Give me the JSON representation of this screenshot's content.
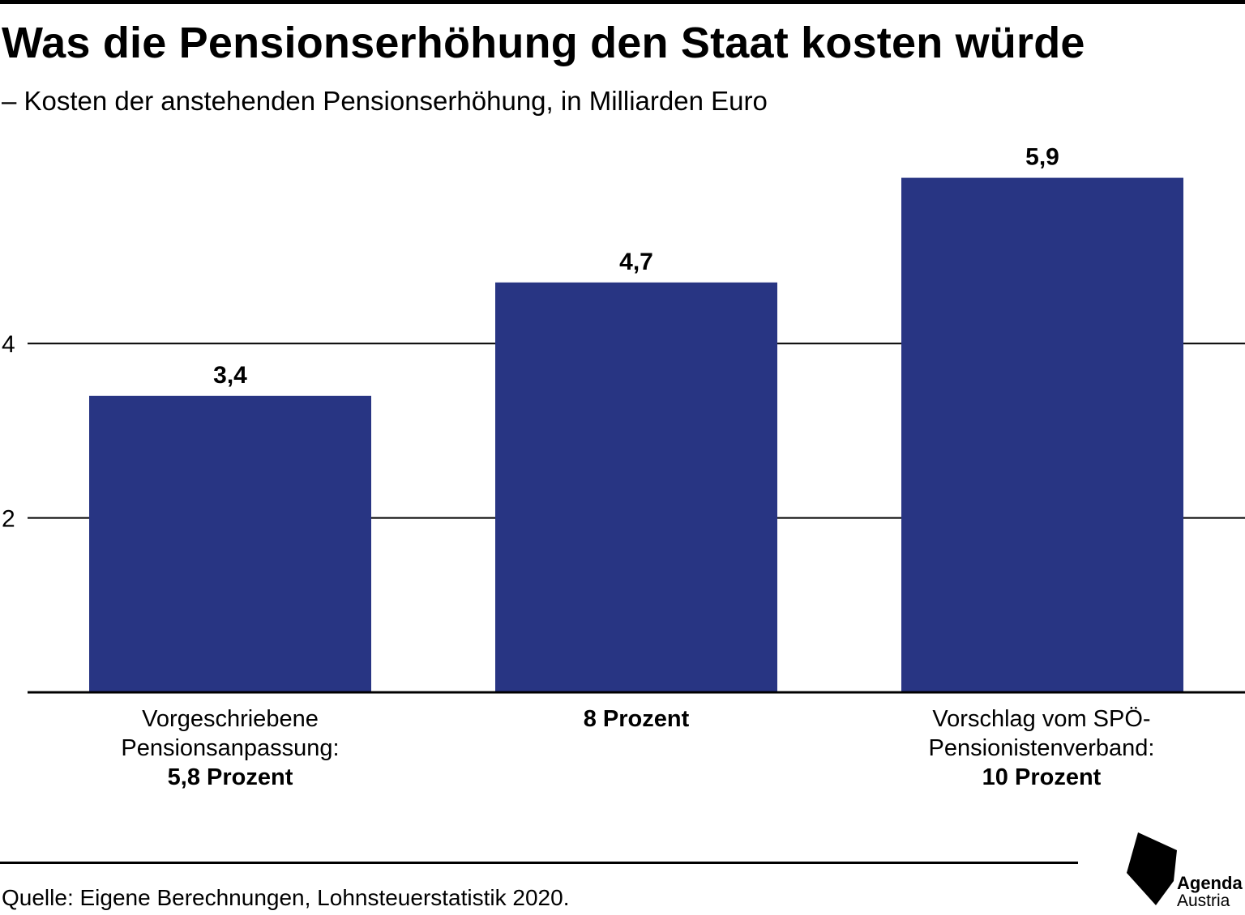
{
  "header": {
    "title": "Was die Pensionserhöhung den Staat kosten würde",
    "subtitle": "– Kosten der anstehenden Pensionserhöhung, in Milliarden Euro"
  },
  "colors": {
    "bar": "#283583",
    "text": "#000000",
    "grid": "#000000"
  },
  "chart_data": {
    "type": "bar",
    "title": "Was die Pensionserhöhung den Staat kosten würde",
    "subtitle": "Kosten der anstehenden Pensionserhöhung, in Milliarden Euro",
    "categories": [
      "Vorgeschriebene Pensionsanpassung: 5,8 Prozent",
      "8 Prozent",
      "Vorschlag vom SPÖ-Pensionistenverband: 10 Prozent"
    ],
    "category_lines": [
      {
        "lines": [
          "Vorgeschriebene",
          "Pensionsanpassung:"
        ],
        "strong": "5,8 Prozent"
      },
      {
        "lines": [],
        "strong": "8 Prozent"
      },
      {
        "lines": [
          "Vorschlag vom SPÖ-",
          "Pensionistenverband:"
        ],
        "strong": "10 Prozent"
      }
    ],
    "values": [
      3.4,
      4.7,
      5.9
    ],
    "data_labels": [
      "3,4",
      "4,7",
      "5,9"
    ],
    "yticks": [
      2,
      4
    ],
    "ytick_labels": [
      "2",
      "4"
    ],
    "ylim": [
      0,
      6.5
    ],
    "xlabel": "",
    "ylabel": "",
    "grid": true
  },
  "footer": {
    "source": "Quelle: Eigene Berechnungen, Lohnsteuerstatistik 2020.",
    "logo_line1": "Agenda",
    "logo_line2": "Austria"
  }
}
